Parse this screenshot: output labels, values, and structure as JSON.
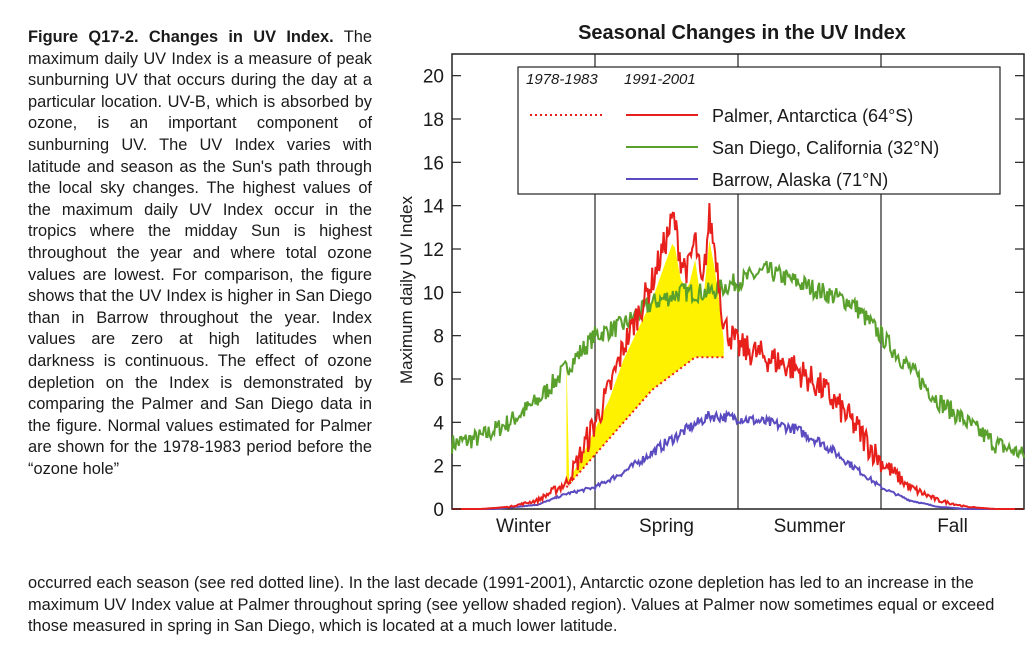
{
  "caption": {
    "figure_label": "Figure Q17-2.",
    "figure_title": "Changes in UV Index.",
    "side_text": "The maximum daily UV Index is a measure of peak sunburning UV that occurs during the day at a particular location. UV-B, which is absorbed by ozone, is an important component of sunburning UV. The UV Index varies with latitude and season as the Sun's path through the local sky changes. The highest values of the maximum daily UV Index occur in the tropics where the midday Sun is highest throughout the year and where total ozone values are lowest. For comparison, the figure shows that the UV Index is higher in San Diego than in Barrow throughout the year. Index values are zero at high latitudes when darkness is continuous. The effect of ozone depletion on the Index is demonstrated by comparing the Palmer and San Diego data in the figure. Normal values estimated for Palmer are shown for the 1978-1983 period before the “ozone hole”",
    "bottom_text": "occurred each season (see red dotted line). In the last decade (1991-2001), Antarctic ozone depletion has led to an increase in the maximum UV Index value at Palmer throughout spring (see yellow shaded region). Values at Palmer now sometimes equal or exceed those measured in spring in San Diego, which is located at a much lower latitude."
  },
  "colors": {
    "palmer": "#e8201c",
    "san_diego": "#5aa02c",
    "barrow": "#5a4bc0",
    "ozone_fill": "#fff200",
    "frame": "#222222"
  },
  "chart_data": {
    "type": "line",
    "title": "Seasonal Changes in the UV Index",
    "ylabel": "Maximum daily UV Index",
    "xlabel": "",
    "ylim": [
      0,
      21
    ],
    "yticks": [
      "0",
      "2",
      "4",
      "6",
      "8",
      "10",
      "12",
      "14",
      "16",
      "18",
      "20"
    ],
    "x_unit": "season fraction (0-4)",
    "xlim": [
      0,
      4
    ],
    "categories": [
      "Winter",
      "Spring",
      "Summer",
      "Fall"
    ],
    "legend": {
      "period_a": "1978-1983",
      "period_b": "1991-2001",
      "placement": "top-center",
      "entries": [
        "Palmer, Antarctica (64°S)",
        "San Diego, California (32°N)",
        "Barrow, Alaska (71°N)"
      ]
    },
    "series": [
      {
        "name": "Palmer, Antarctica (64°S)",
        "period": "1991-2001",
        "x": [
          0.0,
          0.2,
          0.4,
          0.6,
          0.8,
          0.9,
          1.0,
          1.1,
          1.2,
          1.3,
          1.4,
          1.5,
          1.55,
          1.6,
          1.65,
          1.7,
          1.75,
          1.8,
          1.85,
          1.9,
          2.0,
          2.2,
          2.4,
          2.6,
          2.8,
          3.0,
          3.2,
          3.4,
          3.6,
          3.8,
          4.0
        ],
        "y": [
          0.0,
          0.0,
          0.1,
          0.4,
          1.2,
          2.5,
          4.0,
          5.5,
          7.5,
          9.0,
          10.5,
          12.5,
          13.5,
          11.5,
          11.0,
          12.5,
          10.0,
          13.5,
          11.5,
          8.5,
          7.5,
          7.0,
          6.5,
          5.5,
          4.0,
          2.2,
          1.0,
          0.4,
          0.1,
          0.0,
          0.0
        ]
      },
      {
        "name": "Palmer, Antarctica (64°S)",
        "period": "1978-1983",
        "x": [
          0.8,
          1.0,
          1.2,
          1.4,
          1.6,
          1.7,
          1.8,
          1.9
        ],
        "y": [
          1.0,
          2.5,
          4.0,
          5.5,
          6.5,
          7.0,
          7.0,
          7.0
        ]
      },
      {
        "name": "San Diego, California (32°N)",
        "period": "1991-2001",
        "x": [
          0.0,
          0.2,
          0.4,
          0.6,
          0.8,
          1.0,
          1.2,
          1.4,
          1.6,
          1.8,
          2.0,
          2.2,
          2.4,
          2.6,
          2.8,
          3.0,
          3.2,
          3.4,
          3.6,
          3.8,
          4.0
        ],
        "y": [
          3.0,
          3.3,
          4.0,
          5.0,
          6.5,
          8.0,
          8.5,
          9.5,
          10.0,
          10.0,
          10.5,
          11.0,
          10.5,
          10.0,
          9.5,
          8.0,
          6.5,
          5.0,
          4.0,
          3.0,
          2.5
        ]
      },
      {
        "name": "Barrow, Alaska (71°N)",
        "period": "1991-2001",
        "x": [
          0.0,
          0.3,
          0.6,
          0.8,
          1.0,
          1.2,
          1.4,
          1.6,
          1.8,
          2.0,
          2.2,
          2.4,
          2.6,
          2.8,
          3.0,
          3.2,
          3.4,
          3.6,
          4.0
        ],
        "y": [
          0.0,
          0.0,
          0.2,
          0.7,
          1.0,
          1.7,
          2.6,
          3.5,
          4.3,
          4.2,
          4.0,
          3.7,
          3.0,
          2.0,
          1.0,
          0.4,
          0.1,
          0.0,
          0.0
        ]
      }
    ],
    "shaded_region": {
      "label": "ozone depletion",
      "between": [
        "Palmer 1978-1983",
        "Palmer 1991-2001"
      ],
      "x_range": [
        0.8,
        1.9
      ]
    }
  }
}
